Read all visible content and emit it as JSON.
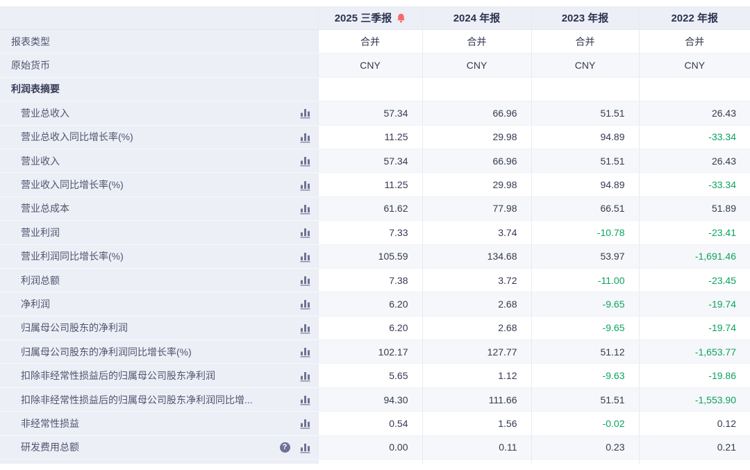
{
  "table_title": "利润表摘要",
  "columns": [
    {
      "label": "2025 三季报",
      "has_bell": true
    },
    {
      "label": "2024 年报",
      "has_bell": false
    },
    {
      "label": "2023 年报",
      "has_bell": false
    },
    {
      "label": "2022 年报",
      "has_bell": false
    }
  ],
  "rows": [
    {
      "label": "报表类型",
      "kind": "info",
      "align": "center",
      "chart_icon": false,
      "help_icon": false,
      "values": [
        "合并",
        "合并",
        "合并",
        "合并"
      ]
    },
    {
      "label": "原始货币",
      "kind": "info",
      "align": "center",
      "chart_icon": false,
      "help_icon": false,
      "values": [
        "CNY",
        "CNY",
        "CNY",
        "CNY"
      ]
    },
    {
      "label": "利润表摘要",
      "kind": "section",
      "align": "right",
      "chart_icon": false,
      "help_icon": false,
      "values": [
        "",
        "",
        "",
        ""
      ]
    },
    {
      "label": "营业总收入",
      "kind": "metric",
      "align": "right",
      "chart_icon": true,
      "help_icon": false,
      "values": [
        "57.34",
        "66.96",
        "51.51",
        "26.43"
      ]
    },
    {
      "label": "营业总收入同比增长率(%)",
      "kind": "metric",
      "align": "right",
      "chart_icon": true,
      "help_icon": false,
      "values": [
        "11.25",
        "29.98",
        "94.89",
        "-33.34"
      ]
    },
    {
      "label": "营业收入",
      "kind": "metric",
      "align": "right",
      "chart_icon": true,
      "help_icon": false,
      "values": [
        "57.34",
        "66.96",
        "51.51",
        "26.43"
      ]
    },
    {
      "label": "营业收入同比增长率(%)",
      "kind": "metric",
      "align": "right",
      "chart_icon": true,
      "help_icon": false,
      "values": [
        "11.25",
        "29.98",
        "94.89",
        "-33.34"
      ]
    },
    {
      "label": "营业总成本",
      "kind": "metric",
      "align": "right",
      "chart_icon": true,
      "help_icon": false,
      "values": [
        "61.62",
        "77.98",
        "66.51",
        "51.89"
      ]
    },
    {
      "label": "营业利润",
      "kind": "metric",
      "align": "right",
      "chart_icon": true,
      "help_icon": false,
      "values": [
        "7.33",
        "3.74",
        "-10.78",
        "-23.41"
      ]
    },
    {
      "label": "营业利润同比增长率(%)",
      "kind": "metric",
      "align": "right",
      "chart_icon": true,
      "help_icon": false,
      "values": [
        "105.59",
        "134.68",
        "53.97",
        "-1,691.46"
      ]
    },
    {
      "label": "利润总额",
      "kind": "metric",
      "align": "right",
      "chart_icon": true,
      "help_icon": false,
      "values": [
        "7.38",
        "3.72",
        "-11.00",
        "-23.45"
      ]
    },
    {
      "label": "净利润",
      "kind": "metric",
      "align": "right",
      "chart_icon": true,
      "help_icon": false,
      "values": [
        "6.20",
        "2.68",
        "-9.65",
        "-19.74"
      ]
    },
    {
      "label": "归属母公司股东的净利润",
      "kind": "metric",
      "align": "right",
      "chart_icon": true,
      "help_icon": false,
      "values": [
        "6.20",
        "2.68",
        "-9.65",
        "-19.74"
      ]
    },
    {
      "label": "归属母公司股东的净利润同比增长率(%)",
      "kind": "metric",
      "align": "right",
      "chart_icon": true,
      "help_icon": false,
      "values": [
        "102.17",
        "127.77",
        "51.12",
        "-1,653.77"
      ]
    },
    {
      "label": "扣除非经常性损益后的归属母公司股东净利润",
      "kind": "metric",
      "align": "right",
      "chart_icon": true,
      "help_icon": false,
      "values": [
        "5.65",
        "1.12",
        "-9.63",
        "-19.86"
      ]
    },
    {
      "label": "扣除非经常性损益后的归属母公司股东净利润同比增...",
      "kind": "metric",
      "align": "right",
      "chart_icon": true,
      "help_icon": false,
      "values": [
        "94.30",
        "111.66",
        "51.51",
        "-1,553.90"
      ]
    },
    {
      "label": "非经常性损益",
      "kind": "metric",
      "align": "right",
      "chart_icon": true,
      "help_icon": false,
      "values": [
        "0.54",
        "1.56",
        "-0.02",
        "0.12"
      ]
    },
    {
      "label": "研发费用总额",
      "kind": "metric",
      "align": "right",
      "chart_icon": true,
      "help_icon": true,
      "values": [
        "0.00",
        "0.11",
        "0.23",
        "0.21"
      ]
    }
  ],
  "icons": {
    "bell": "alert-bell-icon",
    "chart": "bar-chart-icon",
    "help": "help-icon",
    "help_glyph": "?"
  },
  "colors": {
    "negative_value": "#0aa35e",
    "alert_bell": "#f5696a",
    "icon": "#6e7294",
    "header_bg": "#edeff7",
    "alt_row": "#f6f7fa"
  }
}
